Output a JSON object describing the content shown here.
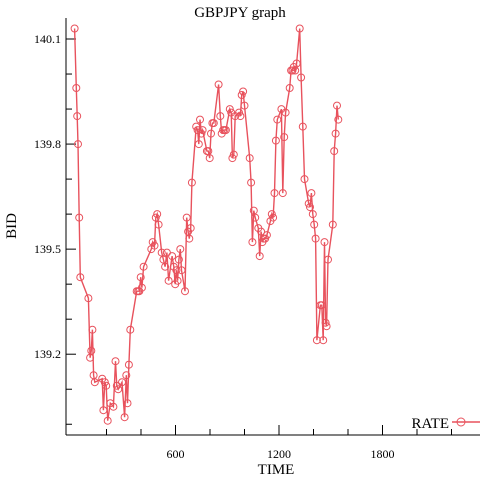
{
  "chart_data": {
    "type": "line",
    "title": "GBPJPY graph",
    "xlabel": "TIME",
    "ylabel": "BID",
    "xlim": [
      0,
      2340
    ],
    "ylim": [
      138.995,
      140.16
    ],
    "x_ticks_labeled": [
      600,
      1200,
      1800
    ],
    "x_ticks_minor": [
      200,
      400,
      800,
      1000,
      1400,
      1600,
      2000,
      2200
    ],
    "y_ticks_labeled": [
      139.2,
      139.5,
      139.8,
      140.1
    ],
    "y_ticks_minor": [
      139.0,
      139.1,
      139.3,
      139.4,
      139.6,
      139.7,
      139.9,
      140.0
    ],
    "grid": false,
    "legend": {
      "position": "bottom-right"
    },
    "colors": {
      "series": "#e8525d"
    },
    "series": [
      {
        "name": "RATE",
        "points": [
          [
            15,
            140.13
          ],
          [
            25,
            139.96
          ],
          [
            30,
            139.88
          ],
          [
            35,
            139.8
          ],
          [
            42,
            139.59
          ],
          [
            48,
            139.42
          ],
          [
            95,
            139.36
          ],
          [
            105,
            139.19
          ],
          [
            112,
            139.21
          ],
          [
            118,
            139.27
          ],
          [
            125,
            139.14
          ],
          [
            132,
            139.12
          ],
          [
            175,
            139.13
          ],
          [
            182,
            139.04
          ],
          [
            190,
            139.12
          ],
          [
            198,
            139.11
          ],
          [
            207,
            139.01
          ],
          [
            222,
            139.06
          ],
          [
            240,
            139.05
          ],
          [
            252,
            139.18
          ],
          [
            260,
            139.11
          ],
          [
            268,
            139.1
          ],
          [
            290,
            139.12
          ],
          [
            305,
            139.02
          ],
          [
            315,
            139.14
          ],
          [
            322,
            139.06
          ],
          [
            330,
            139.17
          ],
          [
            338,
            139.27
          ],
          [
            375,
            139.38
          ],
          [
            383,
            139.38
          ],
          [
            390,
            139.38
          ],
          [
            398,
            139.42
          ],
          [
            405,
            139.39
          ],
          [
            415,
            139.45
          ],
          [
            460,
            139.5
          ],
          [
            468,
            139.52
          ],
          [
            478,
            139.51
          ],
          [
            486,
            139.59
          ],
          [
            494,
            139.6
          ],
          [
            502,
            139.57
          ],
          [
            520,
            139.49
          ],
          [
            530,
            139.47
          ],
          [
            540,
            139.45
          ],
          [
            550,
            139.49
          ],
          [
            560,
            139.41
          ],
          [
            580,
            139.48
          ],
          [
            590,
            139.45
          ],
          [
            598,
            139.4
          ],
          [
            605,
            139.44
          ],
          [
            612,
            139.41
          ],
          [
            620,
            139.47
          ],
          [
            628,
            139.5
          ],
          [
            635,
            139.44
          ],
          [
            655,
            139.38
          ],
          [
            665,
            139.59
          ],
          [
            673,
            139.55
          ],
          [
            680,
            139.53
          ],
          [
            688,
            139.56
          ],
          [
            695,
            139.69
          ],
          [
            720,
            139.85
          ],
          [
            728,
            139.84
          ],
          [
            735,
            139.8
          ],
          [
            742,
            139.87
          ],
          [
            750,
            139.83
          ],
          [
            757,
            139.84
          ],
          [
            782,
            139.78
          ],
          [
            790,
            139.78
          ],
          [
            798,
            139.76
          ],
          [
            806,
            139.83
          ],
          [
            814,
            139.86
          ],
          [
            822,
            139.86
          ],
          [
            850,
            139.97
          ],
          [
            860,
            139.88
          ],
          [
            868,
            139.83
          ],
          [
            876,
            139.84
          ],
          [
            884,
            139.84
          ],
          [
            892,
            139.84
          ],
          [
            915,
            139.9
          ],
          [
            923,
            139.89
          ],
          [
            930,
            139.76
          ],
          [
            938,
            139.77
          ],
          [
            946,
            139.88
          ],
          [
            968,
            139.89
          ],
          [
            976,
            139.88
          ],
          [
            984,
            139.94
          ],
          [
            992,
            139.95
          ],
          [
            1000,
            139.91
          ],
          [
            1030,
            139.76
          ],
          [
            1038,
            139.69
          ],
          [
            1046,
            139.52
          ],
          [
            1054,
            139.61
          ],
          [
            1062,
            139.59
          ],
          [
            1080,
            139.56
          ],
          [
            1088,
            139.48
          ],
          [
            1096,
            139.55
          ],
          [
            1104,
            139.52
          ],
          [
            1112,
            139.53
          ],
          [
            1120,
            139.53
          ],
          [
            1130,
            139.54
          ],
          [
            1150,
            139.58
          ],
          [
            1158,
            139.6
          ],
          [
            1166,
            139.59
          ],
          [
            1174,
            139.66
          ],
          [
            1182,
            139.81
          ],
          [
            1190,
            139.87
          ],
          [
            1214,
            139.9
          ],
          [
            1222,
            139.66
          ],
          [
            1230,
            139.82
          ],
          [
            1238,
            139.89
          ],
          [
            1262,
            139.96
          ],
          [
            1270,
            140.01
          ],
          [
            1278,
            140.01
          ],
          [
            1286,
            140.02
          ],
          [
            1294,
            140.01
          ],
          [
            1302,
            140.03
          ],
          [
            1320,
            140.13
          ],
          [
            1328,
            139.99
          ],
          [
            1338,
            139.85
          ],
          [
            1348,
            139.7
          ],
          [
            1372,
            139.63
          ],
          [
            1380,
            139.62
          ],
          [
            1388,
            139.66
          ],
          [
            1396,
            139.6
          ],
          [
            1404,
            139.57
          ],
          [
            1412,
            139.53
          ],
          [
            1420,
            139.24
          ],
          [
            1440,
            139.34
          ],
          [
            1448,
            139.34
          ],
          [
            1456,
            139.24
          ],
          [
            1464,
            139.52
          ],
          [
            1470,
            139.29
          ],
          [
            1476,
            139.28
          ],
          [
            1484,
            139.47
          ],
          [
            1512,
            139.57
          ],
          [
            1520,
            139.78
          ],
          [
            1528,
            139.83
          ],
          [
            1536,
            139.91
          ],
          [
            1544,
            139.87
          ]
        ]
      }
    ]
  }
}
